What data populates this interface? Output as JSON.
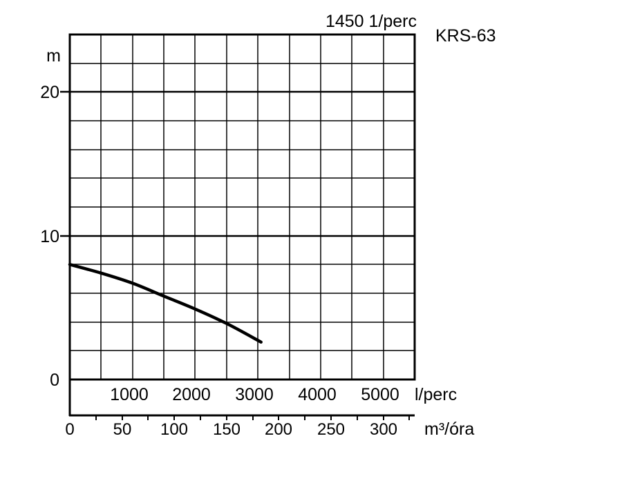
{
  "chart_data": {
    "type": "line",
    "title": "KRS-63",
    "speed_label": "1450 1/perc",
    "y_unit": "m",
    "y_ticks": [
      0,
      10,
      20
    ],
    "ylim": [
      0,
      24
    ],
    "x_primary_unit": "l/perc",
    "x_primary_ticks": [
      1000,
      2000,
      3000,
      4000,
      5000
    ],
    "x_primary_range": [
      0,
      5500
    ],
    "x_secondary_unit": "m³/óra",
    "x_secondary_ticks": [
      0,
      50,
      100,
      150,
      200,
      250,
      300
    ],
    "x_secondary_range": [
      0,
      330
    ],
    "grid": true,
    "series": [
      {
        "x": [
          0,
          500,
          1000,
          1500,
          2000,
          2500,
          3050
        ],
        "y": [
          8.0,
          7.4,
          6.7,
          5.8,
          4.9,
          3.9,
          2.6
        ]
      }
    ]
  }
}
